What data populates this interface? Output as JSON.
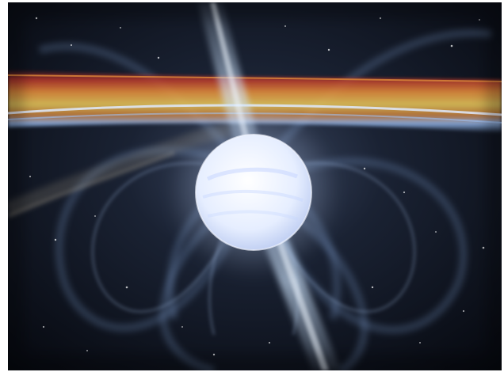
{
  "scene": {
    "subject": "neutron-star-icon",
    "colors": {
      "space": "#05070d",
      "field_line": "#8fb3e8",
      "beam": "#cfe6ff",
      "disk_orange": "#e08a3a",
      "disk_red": "#b8322a",
      "disk_blue": "#9fc6ff",
      "star": "#e9f0ff"
    }
  }
}
